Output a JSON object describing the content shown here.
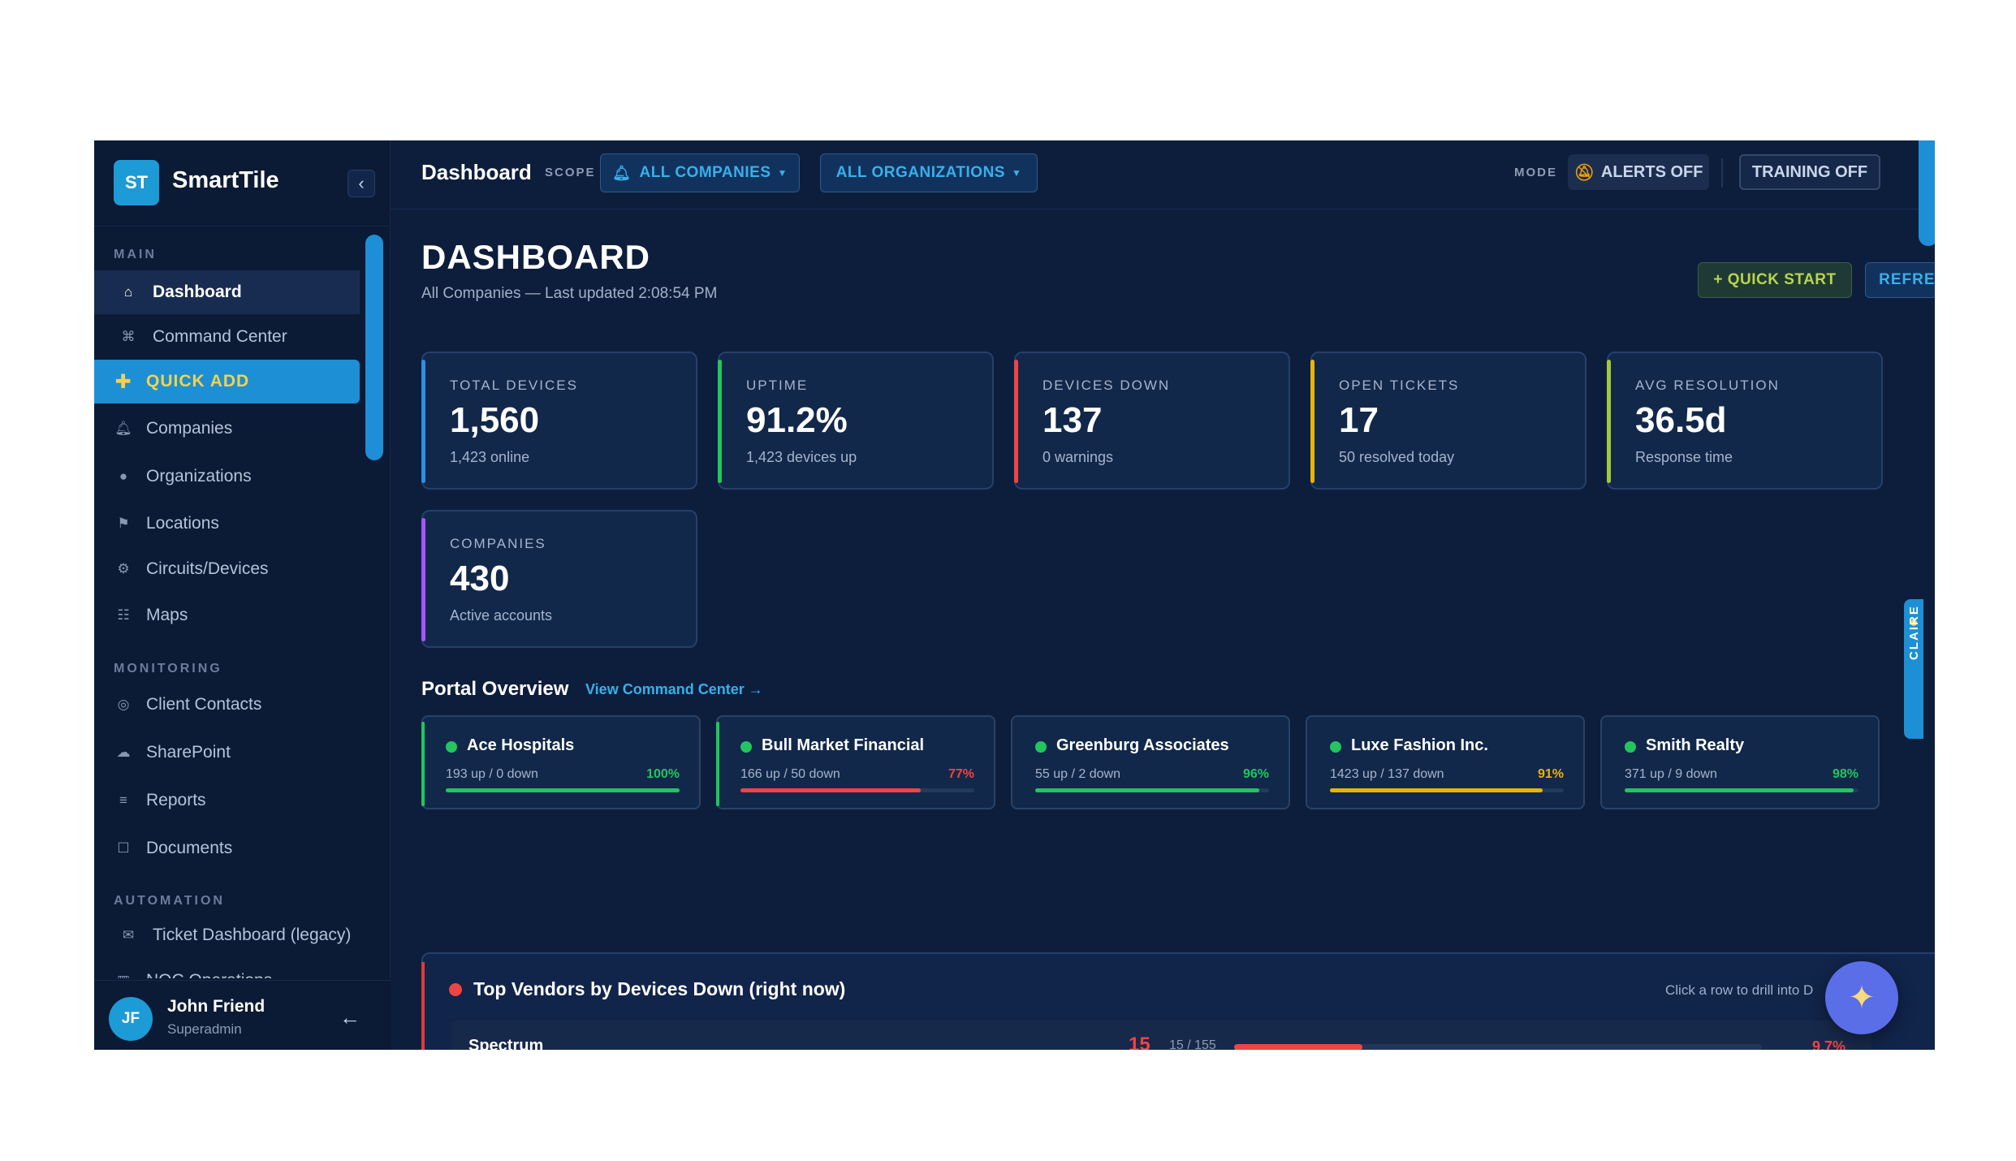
{
  "brand": {
    "logo": "ST",
    "name": "SmartTile"
  },
  "sidebar": {
    "sections": [
      {
        "label": "MAIN"
      },
      {
        "label": "MONITORING"
      },
      {
        "label": "AUTOMATION"
      }
    ],
    "items": [
      {
        "label": "Dashboard",
        "icon": "home-icon"
      },
      {
        "label": "Command Center",
        "icon": "command-icon"
      },
      {
        "label": "QUICK ADD",
        "icon": "plus-icon"
      },
      {
        "label": "Companies",
        "icon": "bell-icon"
      },
      {
        "label": "Organizations",
        "icon": "bell-filled-icon"
      },
      {
        "label": "Locations",
        "icon": "flag-icon"
      },
      {
        "label": "Circuits/Devices",
        "icon": "gear-icon"
      },
      {
        "label": "Maps",
        "icon": "grid-icon"
      },
      {
        "label": "Client Contacts",
        "icon": "contact-icon"
      },
      {
        "label": "SharePoint",
        "icon": "cloud-icon"
      },
      {
        "label": "Reports",
        "icon": "list-icon"
      },
      {
        "label": "Documents",
        "icon": "document-icon"
      },
      {
        "label": "Ticket Dashboard (legacy)",
        "icon": "mail-icon"
      },
      {
        "label": "NOC Operations",
        "icon": "chart-icon"
      }
    ]
  },
  "user": {
    "initials": "JF",
    "name": "John Friend",
    "role": "Superadmin"
  },
  "topbar": {
    "title": "Dashboard",
    "scope_label": "SCOPE",
    "companies_pill": "ALL COMPANIES",
    "organizations_pill": "ALL ORGANIZATIONS",
    "mode_label": "MODE",
    "alerts_btn": "ALERTS OFF",
    "training_btn": "TRAINING OFF"
  },
  "page": {
    "title": "DASHBOARD",
    "subtitle": "All Companies — Last updated 2:08:54 PM",
    "quick_start": "+ QUICK START",
    "refresh": "REFRESH"
  },
  "stats": [
    {
      "label": "TOTAL DEVICES",
      "value": "1,560",
      "sub": "1,423 online",
      "color": "#2f8fe0"
    },
    {
      "label": "UPTIME",
      "value": "91.2%",
      "sub": "1,423 devices up",
      "color": "#22c55e"
    },
    {
      "label": "DEVICES DOWN",
      "value": "137",
      "sub": "0 warnings",
      "color": "#ef4444"
    },
    {
      "label": "OPEN TICKETS",
      "value": "17",
      "sub": "50 resolved today",
      "color": "#eab308"
    },
    {
      "label": "AVG RESOLUTION",
      "value": "36.5d",
      "sub": "Response time",
      "color": "#a3c93a"
    },
    {
      "label": "COMPANIES",
      "value": "430",
      "sub": "Active accounts",
      "color": "#a855f7"
    }
  ],
  "portal": {
    "title": "Portal Overview",
    "link": "View Command Center →",
    "cards": [
      {
        "name": "Ace Hospitals",
        "sub": "193 up / 0 down",
        "pct": "100%",
        "value": 100,
        "color": "#22c55e"
      },
      {
        "name": "Bull Market Financial",
        "sub": "166 up / 50 down",
        "pct": "77%",
        "value": 77,
        "color": "#ef4444"
      },
      {
        "name": "Greenburg  Associates",
        "sub": "55 up / 2 down",
        "pct": "96%",
        "value": 96,
        "color": "#22c55e"
      },
      {
        "name": "Luxe Fashion Inc.",
        "sub": "1423 up / 137 down",
        "pct": "91%",
        "value": 91,
        "color": "#eab308"
      },
      {
        "name": "Smith Realty",
        "sub": "371 up / 9 down",
        "pct": "98%",
        "value": 98,
        "color": "#22c55e"
      }
    ]
  },
  "vendors": {
    "title": "Top Vendors by Devices Down (right now)",
    "hint": "Click a row to drill into D",
    "rows": [
      {
        "name": "Spectrum",
        "count": "15",
        "frac": "15 / 155",
        "pct": "9.7%",
        "value": 9.7
      }
    ]
  },
  "claire": {
    "label": "CLAIRE"
  },
  "ai_button": {
    "icon": "sparkles-icon"
  }
}
